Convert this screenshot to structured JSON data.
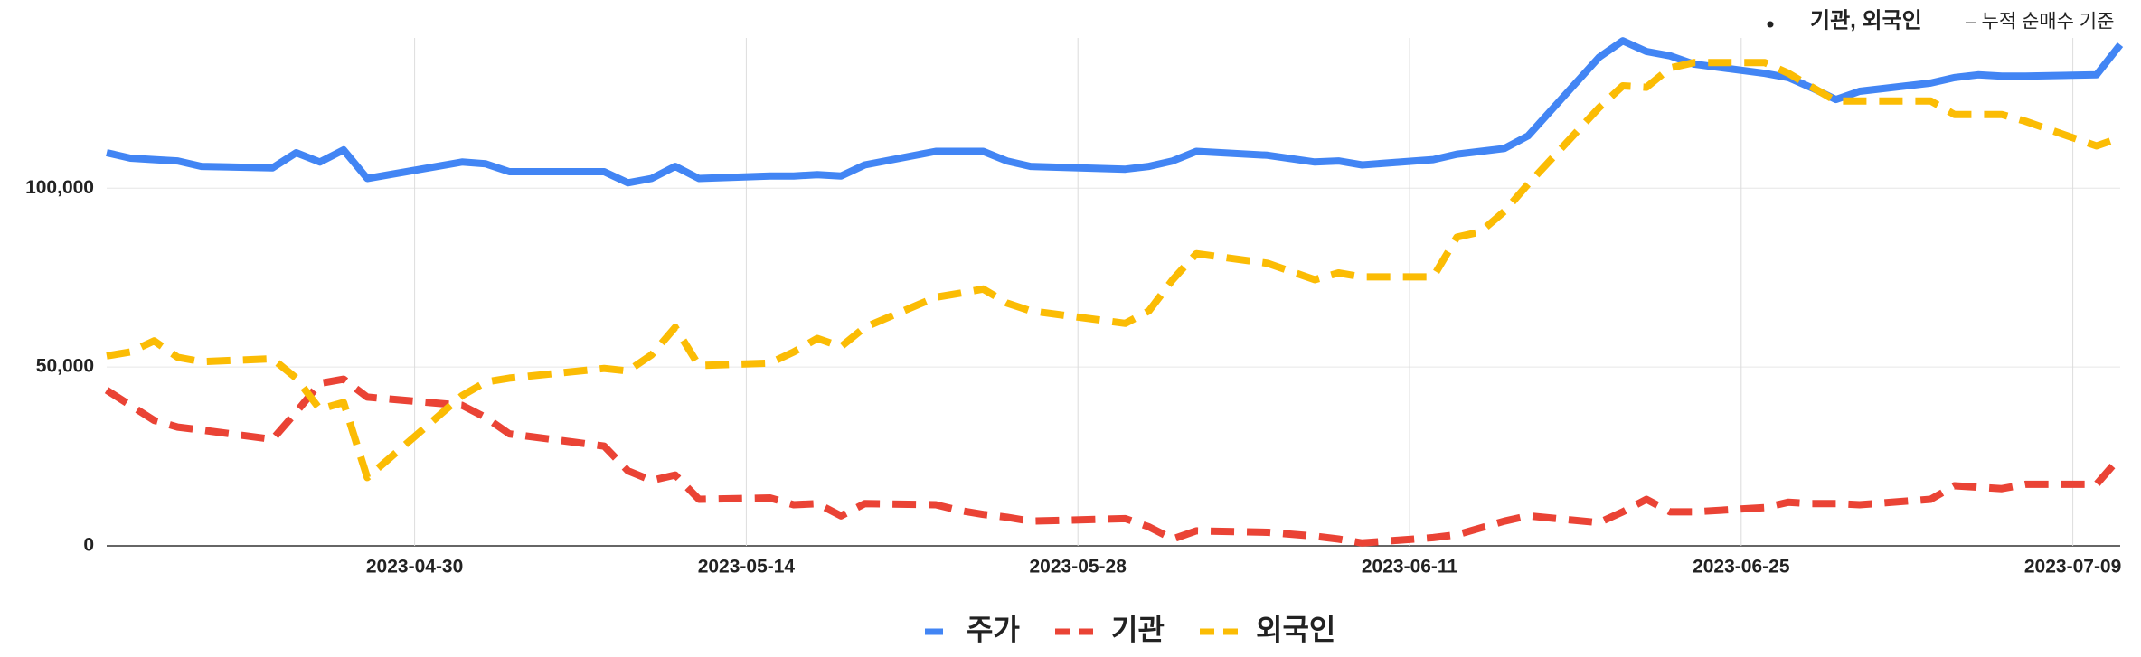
{
  "chart_data": {
    "type": "line",
    "annotation": {
      "label": "기관, 외국인",
      "note": "– 누적 순매수 기준"
    },
    "x": [
      "2023-04-17",
      "2023-04-18",
      "2023-04-19",
      "2023-04-20",
      "2023-04-21",
      "2023-04-24",
      "2023-04-25",
      "2023-04-26",
      "2023-04-27",
      "2023-04-28",
      "2023-05-02",
      "2023-05-03",
      "2023-05-04",
      "2023-05-08",
      "2023-05-09",
      "2023-05-10",
      "2023-05-11",
      "2023-05-12",
      "2023-05-15",
      "2023-05-16",
      "2023-05-17",
      "2023-05-18",
      "2023-05-19",
      "2023-05-22",
      "2023-05-23",
      "2023-05-24",
      "2023-05-25",
      "2023-05-26",
      "2023-05-30",
      "2023-05-31",
      "2023-06-01",
      "2023-06-02",
      "2023-06-05",
      "2023-06-07",
      "2023-06-08",
      "2023-06-09",
      "2023-06-12",
      "2023-06-13",
      "2023-06-14",
      "2023-06-15",
      "2023-06-16",
      "2023-06-19",
      "2023-06-20",
      "2023-06-21",
      "2023-06-22",
      "2023-06-23",
      "2023-06-26",
      "2023-06-27",
      "2023-06-28",
      "2023-06-29",
      "2023-06-30",
      "2023-07-03",
      "2023-07-04",
      "2023-07-05",
      "2023-07-06",
      "2023-07-07",
      "2023-07-10",
      "2023-07-11"
    ],
    "series": [
      {
        "name": "주가",
        "color": "#4285f4",
        "line_style": "solid",
        "values": [
          109900,
          108400,
          108000,
          107600,
          106100,
          105700,
          109900,
          107300,
          110700,
          102700,
          107300,
          106800,
          104600,
          104600,
          101500,
          102700,
          106100,
          102700,
          103400,
          103400,
          103800,
          103400,
          106500,
          110300,
          110300,
          110300,
          107600,
          106100,
          105300,
          106100,
          107600,
          110300,
          109200,
          107300,
          107600,
          106500,
          108000,
          109500,
          110300,
          111100,
          114600,
          136600,
          141200,
          138200,
          137000,
          134700,
          132100,
          130900,
          128000,
          124800,
          127100,
          129400,
          130900,
          131700,
          131300,
          131300,
          131700,
          140100
        ]
      },
      {
        "name": "기관",
        "color": "#ea4335",
        "line_style": "dashed",
        "values": [
          43500,
          39300,
          35100,
          33200,
          32400,
          29800,
          37400,
          45400,
          46600,
          41600,
          39300,
          35900,
          31300,
          27900,
          21000,
          18300,
          19800,
          13000,
          13400,
          11500,
          11800,
          8400,
          11800,
          11500,
          9900,
          8800,
          8000,
          6900,
          7600,
          5300,
          1900,
          4200,
          3800,
          2700,
          1900,
          800,
          2300,
          3100,
          5000,
          6900,
          8400,
          6500,
          9500,
          13000,
          9500,
          9500,
          10700,
          12200,
          11800,
          11800,
          11500,
          13000,
          16800,
          16400,
          16000,
          17200,
          17200,
          24800
        ]
      },
      {
        "name": "외국인",
        "color": "#fbbc04",
        "line_style": "dashed",
        "values": [
          53100,
          54200,
          57300,
          52700,
          51500,
          52300,
          46900,
          38200,
          40100,
          19100,
          42000,
          45800,
          46900,
          49600,
          48900,
          53400,
          61100,
          50400,
          51100,
          54200,
          58000,
          55700,
          61100,
          69500,
          70600,
          71800,
          67900,
          65700,
          62200,
          65700,
          74400,
          81700,
          79000,
          74400,
          76300,
          75200,
          75200,
          86300,
          87800,
          93500,
          101100,
          122500,
          128600,
          128200,
          133600,
          135100,
          135100,
          132100,
          128200,
          124400,
          124400,
          124400,
          120600,
          120600,
          120600,
          118700,
          111800,
          114100
        ]
      }
    ],
    "xlim": [
      "2023-04-17",
      "2023-07-11"
    ],
    "xticks": [
      "2023-04-30",
      "2023-05-14",
      "2023-05-28",
      "2023-06-11",
      "2023-06-25",
      "2023-07-09"
    ],
    "ylim": [
      0,
      142000
    ],
    "yticks": [
      0,
      {
        "value": 50000,
        "label": "50,000"
      },
      {
        "value": 100000,
        "label": "100,000"
      }
    ],
    "grid": true,
    "legend": "bottom"
  }
}
